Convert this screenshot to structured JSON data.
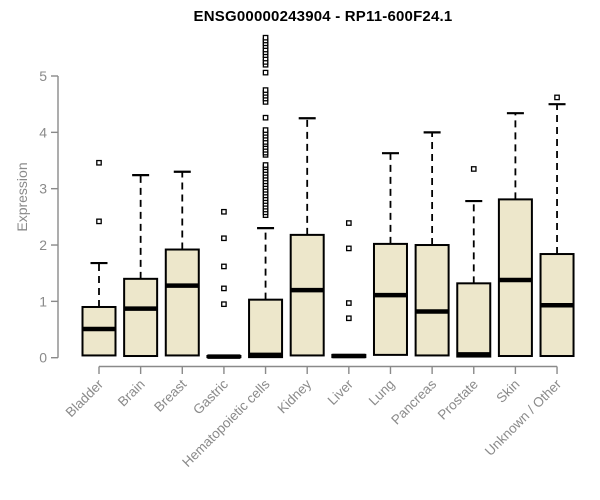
{
  "chart_data": {
    "type": "boxplot",
    "title": "ENSG00000243904 - RP11-600F24.1",
    "ylabel": "Expression",
    "xlabel": "",
    "ylim": [
      0,
      5
    ],
    "yticks": [
      0,
      1,
      2,
      3,
      4,
      5
    ],
    "grid": false,
    "legend": false,
    "categories": [
      "Bladder",
      "Brain",
      "Breast",
      "Gastric",
      "Hematopoietic cells",
      "Kidney",
      "Liver",
      "Lung",
      "Pancreas",
      "Prostate",
      "Skin",
      "Unknown / Other"
    ],
    "boxes": [
      {
        "category": "Bladder",
        "whisker_low": 0.04,
        "q1": 0.04,
        "median": 0.51,
        "q3": 0.9,
        "whisker_high": 1.68,
        "outliers": [
          2.42,
          3.46
        ]
      },
      {
        "category": "Brain",
        "whisker_low": 0.03,
        "q1": 0.03,
        "median": 0.87,
        "q3": 1.4,
        "whisker_high": 3.24,
        "outliers": []
      },
      {
        "category": "Breast",
        "whisker_low": 0.04,
        "q1": 0.04,
        "median": 1.28,
        "q3": 1.92,
        "whisker_high": 3.3,
        "outliers": []
      },
      {
        "category": "Gastric",
        "whisker_low": 0.01,
        "q1": 0.01,
        "median": 0.02,
        "q3": 0.03,
        "whisker_high": 0.03,
        "outliers": [
          0.95,
          1.23,
          1.62,
          2.12,
          2.59
        ]
      },
      {
        "category": "Hematopoietic cells",
        "whisker_low": 0.01,
        "q1": 0.01,
        "median": 0.05,
        "q3": 1.03,
        "whisker_high": 2.3,
        "outliers": [
          2.53,
          2.58,
          2.63,
          2.68,
          2.73,
          2.78,
          2.83,
          2.88,
          2.93,
          2.98,
          3.03,
          3.08,
          3.13,
          3.18,
          3.23,
          3.28,
          3.33,
          3.38,
          3.42,
          3.6,
          3.64,
          3.69,
          3.74,
          3.79,
          3.83,
          3.89,
          3.94,
          3.99,
          4.04,
          4.26,
          4.54,
          4.6,
          4.65,
          4.7,
          4.75,
          5.06,
          5.2,
          5.25,
          5.31,
          5.37,
          5.42,
          5.47,
          5.53,
          5.58,
          5.63,
          5.68
        ]
      },
      {
        "category": "Kidney",
        "whisker_low": 0.04,
        "q1": 0.04,
        "median": 1.2,
        "q3": 2.18,
        "whisker_high": 4.25,
        "outliers": []
      },
      {
        "category": "Liver",
        "whisker_low": 0.01,
        "q1": 0.01,
        "median": 0.03,
        "q3": 0.05,
        "whisker_high": 0.05,
        "outliers": [
          0.7,
          0.97,
          1.94,
          2.39
        ]
      },
      {
        "category": "Lung",
        "whisker_low": 0.05,
        "q1": 0.05,
        "median": 1.11,
        "q3": 2.02,
        "whisker_high": 3.63,
        "outliers": []
      },
      {
        "category": "Pancreas",
        "whisker_low": 0.04,
        "q1": 0.04,
        "median": 0.82,
        "q3": 2.0,
        "whisker_high": 4.0,
        "outliers": []
      },
      {
        "category": "Prostate",
        "whisker_low": 0.02,
        "q1": 0.02,
        "median": 0.06,
        "q3": 1.32,
        "whisker_high": 2.78,
        "outliers": [
          3.35
        ]
      },
      {
        "category": "Skin",
        "whisker_low": 0.03,
        "q1": 0.03,
        "median": 1.38,
        "q3": 2.81,
        "whisker_high": 4.34,
        "outliers": []
      },
      {
        "category": "Unknown / Other",
        "whisker_low": 0.03,
        "q1": 0.03,
        "median": 0.93,
        "q3": 1.84,
        "whisker_high": 4.5,
        "outliers": [
          4.62
        ]
      }
    ],
    "colors": {
      "background": "#FFFFFF",
      "box_fill": "#EDE7CB",
      "box_border": "#000000",
      "median": "#000000",
      "whisker": "#000000",
      "outlier_stroke": "#000000",
      "outlier_fill": "#FFFFFF",
      "axis": "#8a8a8a",
      "tick_label": "#8a8a8a",
      "title_color": "#000000"
    }
  }
}
